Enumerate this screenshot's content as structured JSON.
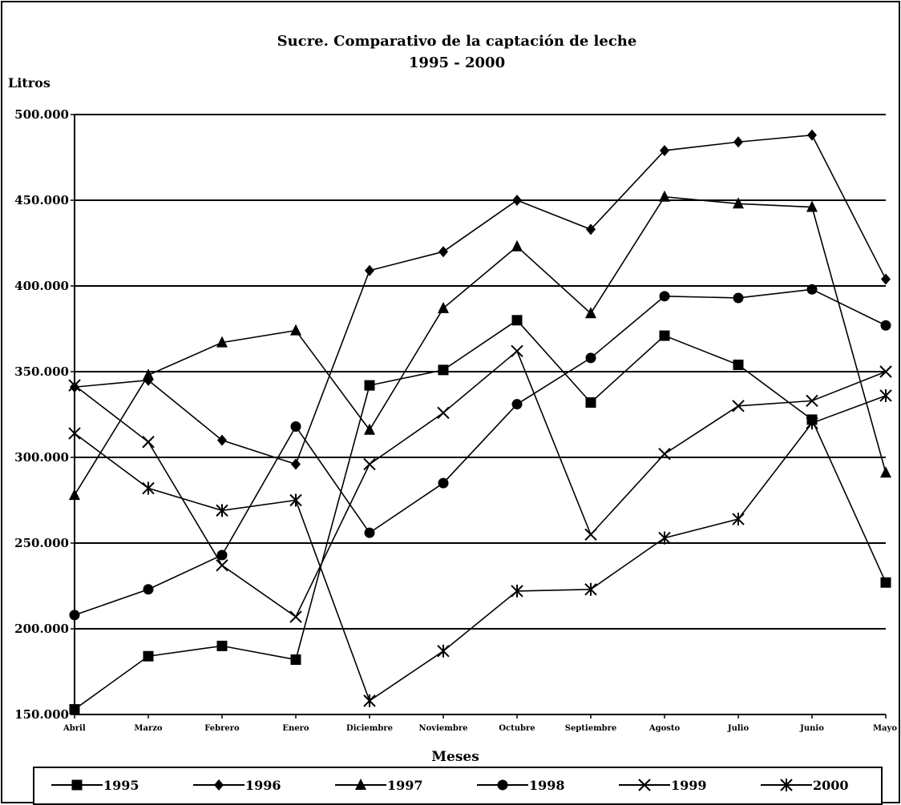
{
  "chart_data": {
    "type": "line",
    "title": "Sucre. Comparativo de la captación de leche",
    "subtitle": "1995 - 2000",
    "ylabel": "Litros",
    "xlabel": "Meses",
    "ylim": [
      150000,
      500000
    ],
    "yticks": [
      "150.000",
      "200.000",
      "250.000",
      "300.000",
      "350.000",
      "400.000",
      "450.000",
      "500.000"
    ],
    "ytick_values": [
      150000,
      200000,
      250000,
      300000,
      350000,
      400000,
      450000,
      500000
    ],
    "categories": [
      "Abril",
      "Marzo",
      "Febrero",
      "Enero",
      "Diciembre",
      "Noviembre",
      "Octubre",
      "Septiembre",
      "Agosto",
      "Julio",
      "Junio",
      "Mayo"
    ],
    "grid": "horizontal",
    "legend_position": "bottom",
    "series": [
      {
        "name": "1995",
        "marker": "square",
        "values": [
          153000,
          184000,
          190000,
          182000,
          342000,
          351000,
          380000,
          332000,
          371000,
          354000,
          322000,
          227000
        ]
      },
      {
        "name": "1996",
        "marker": "diamond",
        "values": [
          341000,
          345000,
          310000,
          296000,
          409000,
          420000,
          450000,
          433000,
          479000,
          484000,
          488000,
          404000
        ]
      },
      {
        "name": "1997",
        "marker": "triangle",
        "values": [
          278000,
          348000,
          367000,
          374000,
          316000,
          387000,
          423000,
          384000,
          452000,
          448000,
          446000,
          291000
        ]
      },
      {
        "name": "1998",
        "marker": "circle",
        "values": [
          208000,
          223000,
          243000,
          318000,
          256000,
          285000,
          331000,
          358000,
          394000,
          393000,
          398000,
          377000
        ]
      },
      {
        "name": "1999",
        "marker": "x",
        "values": [
          342000,
          309000,
          237000,
          207000,
          296000,
          326000,
          362000,
          255000,
          302000,
          330000,
          333000,
          350000
        ]
      },
      {
        "name": "2000",
        "marker": "star",
        "values": [
          314000,
          282000,
          269000,
          275000,
          158000,
          187000,
          222000,
          223000,
          253000,
          264000,
          320000,
          336000
        ]
      }
    ]
  }
}
